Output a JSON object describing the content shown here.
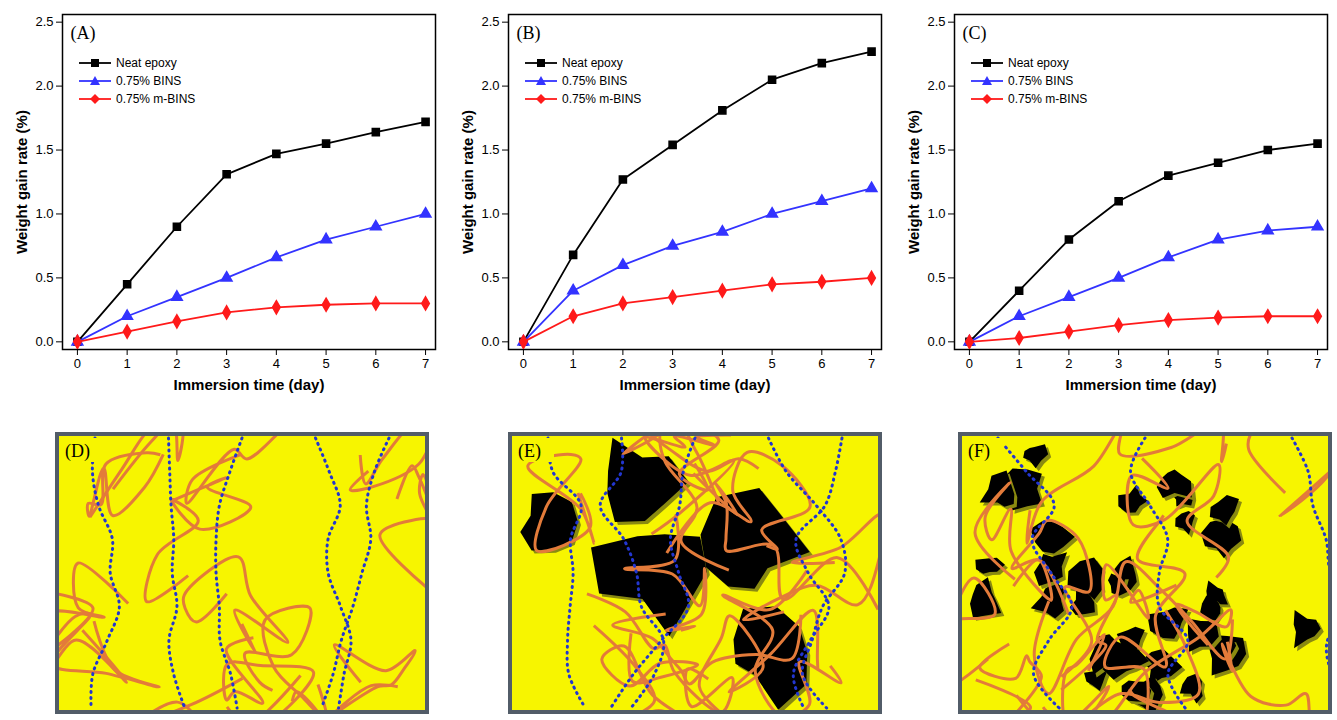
{
  "chart_data": [
    {
      "type": "line",
      "title": "(A)",
      "x_label": "Immersion time (day)",
      "y_label": "Weight gain rate (%)",
      "x": [
        0,
        1,
        2,
        3,
        4,
        5,
        6,
        7
      ],
      "series": [
        {
          "name": "Neat epoxy",
          "color": "#000000",
          "marker": "square",
          "values": [
            0,
            0.45,
            0.9,
            1.31,
            1.47,
            1.55,
            1.64,
            1.72
          ]
        },
        {
          "name": "0.75% BINS",
          "color": "#3333ff",
          "marker": "triangle",
          "values": [
            0,
            0.2,
            0.35,
            0.5,
            0.66,
            0.8,
            0.9,
            1.0
          ]
        },
        {
          "name": "0.75% m-BINS",
          "color": "#ff1a1a",
          "marker": "diamond",
          "values": [
            0,
            0.08,
            0.16,
            0.23,
            0.27,
            0.29,
            0.3,
            0.3
          ]
        }
      ],
      "xlim": [
        -0.3,
        7.2
      ],
      "ylim": [
        -0.06,
        2.56
      ],
      "xticks": [
        0,
        1,
        2,
        3,
        4,
        5,
        6,
        7
      ],
      "yticks": [
        {
          "value": 0,
          "label": "0.0"
        },
        0.5,
        {
          "value": 1,
          "label": "1.0"
        },
        1.5,
        {
          "value": 2,
          "label": "2.0"
        },
        2.5
      ],
      "legend": "top-left"
    },
    {
      "type": "line",
      "title": "(B)",
      "x_label": "Immersion time (day)",
      "y_label": "Weight gain rate (%)",
      "x": [
        0,
        1,
        2,
        3,
        4,
        5,
        6,
        7
      ],
      "series": [
        {
          "name": "Neat epoxy",
          "color": "#000000",
          "marker": "square",
          "values": [
            0,
            0.68,
            1.27,
            1.54,
            1.81,
            2.05,
            2.18,
            2.27
          ]
        },
        {
          "name": "0.75% BINS",
          "color": "#3333ff",
          "marker": "triangle",
          "values": [
            0,
            0.4,
            0.6,
            0.75,
            0.86,
            1.0,
            1.1,
            1.2
          ]
        },
        {
          "name": "0.75% m-BINS",
          "color": "#ff1a1a",
          "marker": "diamond",
          "values": [
            0,
            0.2,
            0.3,
            0.35,
            0.4,
            0.45,
            0.47,
            0.5
          ]
        }
      ],
      "xlim": [
        -0.3,
        7.2
      ],
      "ylim": [
        -0.06,
        2.56
      ],
      "xticks": [
        0,
        1,
        2,
        3,
        4,
        5,
        6,
        7
      ],
      "yticks": [
        {
          "value": 0,
          "label": "0.0"
        },
        0.5,
        {
          "value": 1,
          "label": "1.0"
        },
        1.5,
        {
          "value": 2,
          "label": "2.0"
        },
        2.5
      ],
      "legend": "top-left"
    },
    {
      "type": "line",
      "title": "(C)",
      "x_label": "Immersion time (day)",
      "y_label": "Weight gain rate (%)",
      "x": [
        0,
        1,
        2,
        3,
        4,
        5,
        6,
        7
      ],
      "series": [
        {
          "name": "Neat epoxy",
          "color": "#000000",
          "marker": "square",
          "values": [
            0,
            0.4,
            0.8,
            1.1,
            1.3,
            1.4,
            1.5,
            1.55
          ]
        },
        {
          "name": "0.75% BINS",
          "color": "#3333ff",
          "marker": "triangle",
          "values": [
            0,
            0.2,
            0.35,
            0.5,
            0.66,
            0.8,
            0.87,
            0.9
          ]
        },
        {
          "name": "0.75% m-BINS",
          "color": "#ff1a1a",
          "marker": "diamond",
          "values": [
            0,
            0.03,
            0.08,
            0.13,
            0.17,
            0.19,
            0.2,
            0.2
          ]
        }
      ],
      "xlim": [
        -0.3,
        7.2
      ],
      "ylim": [
        -0.06,
        2.56
      ],
      "xticks": [
        0,
        1,
        2,
        3,
        4,
        5,
        6,
        7
      ],
      "yticks": [
        {
          "value": 0,
          "label": "0.0"
        },
        0.5,
        {
          "value": 1,
          "label": "1.0"
        },
        1.5,
        {
          "value": 2,
          "label": "2.0"
        },
        2.5
      ],
      "legend": "top-left"
    }
  ],
  "diagrams": [
    {
      "label": "(D)"
    },
    {
      "label": "(E)"
    },
    {
      "label": "(F)"
    }
  ]
}
